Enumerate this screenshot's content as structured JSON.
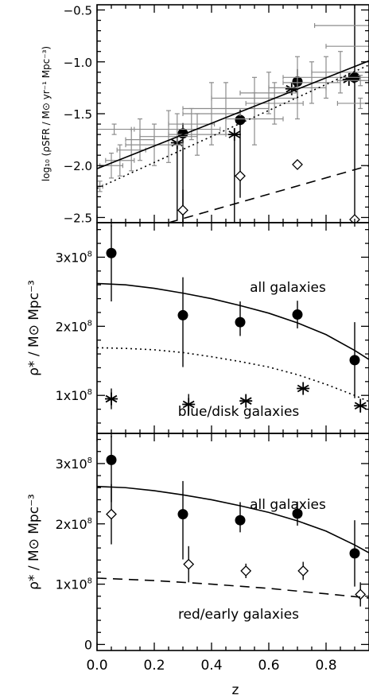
{
  "figure": {
    "xlabel": "z"
  },
  "chart_data": [
    {
      "type": "scatter",
      "xlim": [
        0.0,
        0.95
      ],
      "ylim": [
        -2.55,
        -0.45
      ],
      "ylabel": "log₁₀ (ρSFR / M⊙ yr⁻¹ Mpc⁻³)",
      "xticks": [
        0.0,
        0.2,
        0.4,
        0.6,
        0.8
      ],
      "yticks": [
        -2.5,
        -2.0,
        -1.5,
        -1.0,
        -0.5
      ],
      "ytick_labels": [
        "−2.5",
        "−2.0",
        "−1.5",
        "−1.0",
        "−0.5"
      ],
      "grid": false,
      "series": [
        {
          "marker": "filled-circle",
          "x": [
            0.3,
            0.5,
            0.7,
            0.9
          ],
          "y": [
            -1.69,
            -1.56,
            -1.19,
            -1.15
          ],
          "yerr_lo": [
            1.0,
            0.75,
            0.15,
            2.0
          ],
          "yerr_hi": [
            0.1,
            0.1,
            0.12,
            1.0
          ]
        },
        {
          "marker": "asterisk",
          "x": [
            0.28,
            0.48,
            0.68,
            0.88
          ],
          "y": [
            -1.78,
            -1.7,
            -1.26,
            -1.17
          ],
          "yerr_lo": [
            0.75,
            0.85,
            0.0,
            0.0
          ],
          "yerr_hi": [
            0.0,
            0.0,
            0.0,
            0.0
          ]
        },
        {
          "marker": "open-diamond",
          "x": [
            0.3,
            0.5,
            0.7,
            0.9
          ],
          "y": [
            -2.43,
            -2.1,
            -1.99,
            -2.52
          ],
          "yerr_lo": [
            0.12,
            0.0,
            0.0,
            0.0
          ],
          "yerr_hi": [
            0.2,
            0.0,
            0.0,
            0.0
          ]
        },
        {
          "marker": "compilation-errorbars",
          "x": [
            0.01,
            0.05,
            0.08,
            0.12,
            0.15,
            0.2,
            0.25,
            0.28,
            0.33,
            0.35,
            0.4,
            0.45,
            0.55,
            0.55,
            0.6,
            0.62,
            0.7,
            0.75,
            0.8,
            0.85,
            0.88,
            0.9,
            0.92,
            0.92,
            0.06
          ],
          "y": [
            -2.2,
            -2.0,
            -1.95,
            -1.85,
            -1.75,
            -1.8,
            -1.72,
            -1.65,
            -1.6,
            -1.7,
            -1.5,
            -1.45,
            -1.35,
            -1.55,
            -1.3,
            -1.4,
            -1.25,
            -1.2,
            -1.15,
            -1.1,
            -0.65,
            -0.85,
            -1.18,
            -1.4,
            -1.65
          ],
          "xerr": [
            0.01,
            0.04,
            0.05,
            0.05,
            0.05,
            0.1,
            0.1,
            0.15,
            0.08,
            0.1,
            0.1,
            0.15,
            0.15,
            0.1,
            0.1,
            0.1,
            0.1,
            0.1,
            0.15,
            0.1,
            0.12,
            0.1,
            0.08,
            0.08,
            0.06
          ],
          "yerr": [
            0.05,
            0.12,
            0.15,
            0.2,
            0.2,
            0.2,
            0.25,
            0.15,
            0.15,
            0.2,
            0.3,
            0.25,
            0.2,
            0.25,
            0.2,
            0.2,
            0.3,
            0.2,
            0.2,
            0.2,
            0.0,
            0.0,
            0.05,
            0.05,
            0.05
          ]
        },
        {
          "style": "solid",
          "x": [
            0.0,
            0.95
          ],
          "y": [
            -2.03,
            -0.99
          ]
        },
        {
          "style": "dotted",
          "x": [
            0.0,
            0.95
          ],
          "y": [
            -2.22,
            -1.03
          ]
        },
        {
          "style": "dashed",
          "x": [
            0.25,
            0.95
          ],
          "y": [
            -2.55,
            -2.0
          ]
        }
      ]
    },
    {
      "type": "scatter",
      "xlim": [
        0.0,
        0.95
      ],
      "ylim": [
        0.45,
        3.5
      ],
      "yunit_multiplier": "10^8",
      "ylabel": "ρ* / M⊙ Mpc⁻³",
      "xticks": [
        0.0,
        0.2,
        0.4,
        0.6,
        0.8
      ],
      "yticks": [
        1,
        2,
        3
      ],
      "grid": false,
      "annotations": [
        "all galaxies",
        "blue/disk galaxies"
      ],
      "series": [
        {
          "marker": "filled-circle",
          "x": [
            0.05,
            0.3,
            0.5,
            0.7,
            0.9
          ],
          "y": [
            3.06,
            2.16,
            2.06,
            2.17,
            1.51
          ],
          "yerr_lo": [
            0.7,
            0.75,
            0.2,
            0.2,
            0.55
          ],
          "yerr_hi": [
            0.4,
            0.55,
            0.3,
            0.2,
            0.55
          ]
        },
        {
          "marker": "asterisk",
          "x": [
            0.05,
            0.32,
            0.52,
            0.72,
            0.92
          ],
          "y": [
            0.95,
            0.87,
            0.92,
            1.1,
            0.85
          ],
          "yerr_lo": [
            0.15,
            0.15,
            0.1,
            0.07,
            0.1
          ],
          "yerr_hi": [
            0.15,
            0.15,
            0.1,
            0.07,
            0.1
          ]
        },
        {
          "style": "solid",
          "x": [
            0.0,
            0.1,
            0.2,
            0.3,
            0.4,
            0.5,
            0.6,
            0.7,
            0.8,
            0.9,
            0.95
          ],
          "y": [
            2.62,
            2.6,
            2.55,
            2.48,
            2.4,
            2.3,
            2.19,
            2.05,
            1.88,
            1.65,
            1.52
          ]
        },
        {
          "style": "dotted",
          "x": [
            0.0,
            0.1,
            0.2,
            0.3,
            0.4,
            0.5,
            0.6,
            0.7,
            0.8,
            0.9,
            0.95
          ],
          "y": [
            1.69,
            1.68,
            1.66,
            1.62,
            1.56,
            1.49,
            1.41,
            1.3,
            1.16,
            1.0,
            0.91
          ]
        }
      ]
    },
    {
      "type": "scatter",
      "xlim": [
        0.0,
        0.95
      ],
      "ylim": [
        -0.1,
        3.5
      ],
      "yunit_multiplier": "10^8",
      "ylabel": "ρ* / M⊙ Mpc⁻³",
      "xlabel": "z",
      "xticks": [
        0.0,
        0.2,
        0.4,
        0.6,
        0.8
      ],
      "xtick_labels": [
        "0.0",
        "0.2",
        "0.4",
        "0.6",
        "0.8"
      ],
      "yticks": [
        0,
        1,
        2,
        3
      ],
      "grid": false,
      "annotations": [
        "all galaxies",
        "red/early galaxies"
      ],
      "series": [
        {
          "marker": "filled-circle",
          "x": [
            0.05,
            0.3,
            0.5,
            0.7,
            0.9
          ],
          "y": [
            3.06,
            2.16,
            2.06,
            2.17,
            1.51
          ],
          "yerr_lo": [
            0.7,
            0.75,
            0.2,
            0.2,
            0.55
          ],
          "yerr_hi": [
            0.4,
            0.55,
            0.3,
            0.2,
            0.55
          ]
        },
        {
          "marker": "open-diamond",
          "x": [
            0.05,
            0.32,
            0.52,
            0.72,
            0.92
          ],
          "y": [
            2.16,
            1.33,
            1.22,
            1.22,
            0.83
          ],
          "yerr_lo": [
            0.5,
            0.3,
            0.12,
            0.15,
            0.2
          ],
          "yerr_hi": [
            0.5,
            0.3,
            0.12,
            0.15,
            0.2
          ]
        },
        {
          "style": "solid",
          "x": [
            0.0,
            0.1,
            0.2,
            0.3,
            0.4,
            0.5,
            0.6,
            0.7,
            0.8,
            0.9,
            0.95
          ],
          "y": [
            2.62,
            2.6,
            2.55,
            2.48,
            2.4,
            2.3,
            2.19,
            2.05,
            1.88,
            1.65,
            1.52
          ]
        },
        {
          "style": "dashed",
          "x": [
            0.0,
            0.2,
            0.4,
            0.6,
            0.8,
            0.95
          ],
          "y": [
            1.1,
            1.06,
            1.0,
            0.93,
            0.84,
            0.77
          ]
        }
      ]
    }
  ]
}
